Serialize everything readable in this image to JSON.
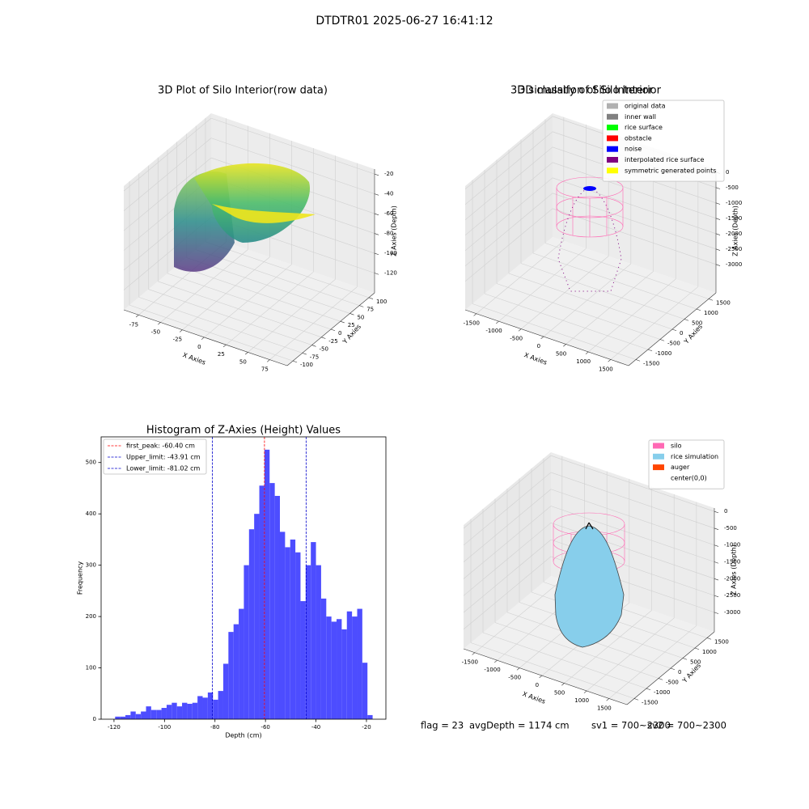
{
  "title": "DTDTR01 2025-06-27 16:41:12",
  "chart_data": [
    {
      "type": "scatter3d",
      "title": "3D Plot of Silo Interior(row data)",
      "xlabel": "X Axies",
      "ylabel": "Y Axies",
      "zlabel": "Z Axies (Depth)",
      "xlim": [
        -92,
        95
      ],
      "ylim": [
        -115,
        115
      ],
      "zlim": [
        -140,
        -15
      ],
      "xticks": [
        -75,
        -50,
        -25,
        0,
        25,
        50,
        75
      ],
      "yticks": [
        -100,
        -75,
        -50,
        -25,
        0,
        25,
        50,
        75,
        100
      ],
      "zticks": [
        -120,
        -100,
        -80,
        -60,
        -40,
        -20
      ],
      "grid": true
    },
    {
      "type": "scatter3d",
      "title": "3D classify of Silo Interior",
      "xlabel": "X Axies",
      "ylabel": "Y Axies",
      "zlabel": "Z Axies (Depth)",
      "xlim": [
        -1750,
        1900
      ],
      "ylim": [
        -1800,
        1800
      ],
      "zlim": [
        -3926,
        100
      ],
      "xticks": [
        -1500,
        -1000,
        -500,
        0,
        500,
        1000,
        1500
      ],
      "yticks": [
        -1500,
        -1000,
        -500,
        0,
        500,
        1000,
        1500
      ],
      "zticks": [
        -3000,
        -2500,
        -2000,
        -1500,
        -1000,
        -500,
        0
      ],
      "grid": true,
      "legend": {
        "loc": "upper right",
        "items": [
          {
            "name": "original data",
            "color": "#b0b0b0"
          },
          {
            "name": "inner wall",
            "color": "#808080"
          },
          {
            "name": "rice surface",
            "color": "#00ff00"
          },
          {
            "name": "obstacle",
            "color": "#ff0000"
          },
          {
            "name": "noise",
            "color": "#0000ff"
          },
          {
            "name": "interpolated rice surface",
            "color": "#800080"
          },
          {
            "name": "symmetric generated points",
            "color": "#ffff00"
          }
        ]
      }
    },
    {
      "type": "histogram",
      "title": "Histogram of Z-Axies (Height) Values",
      "xlabel": "Depth (cm)",
      "ylabel": "Frequency",
      "color": "#4d4dff",
      "bins": [
        -119.56,
        -117.52,
        -115.48,
        -113.44,
        -111.4,
        -109.36,
        -107.32,
        -105.28,
        -103.24,
        -101.2,
        -99.16,
        -97.12,
        -95.08,
        -93.04,
        -91.0,
        -88.96,
        -86.92,
        -84.88,
        -82.84,
        -80.8,
        -78.76,
        -76.72,
        -74.68,
        -72.64,
        -70.6,
        -68.56,
        -66.52,
        -64.48,
        -62.44,
        -60.4,
        -58.36,
        -56.32,
        -54.28,
        -52.24,
        -50.2,
        -48.16,
        -46.12,
        -44.08,
        -42.04,
        -40.0,
        -37.96,
        -35.92,
        -33.88,
        -31.84,
        -29.8,
        -27.76,
        -25.72,
        -23.68,
        -21.64,
        -19.6,
        -17.56
      ],
      "counts": [
        5,
        5,
        8,
        15,
        10,
        15,
        25,
        18,
        18,
        22,
        28,
        32,
        25,
        32,
        30,
        32,
        45,
        42,
        52,
        38,
        55,
        108,
        170,
        185,
        215,
        300,
        370,
        400,
        455,
        525,
        460,
        435,
        365,
        335,
        350,
        325,
        230,
        300,
        345,
        300,
        235,
        200,
        190,
        195,
        175,
        210,
        200,
        215,
        110,
        8
      ],
      "xlim": [
        -125.1,
        -12.3
      ],
      "ylim": [
        0,
        550
      ],
      "xticks": [
        -120,
        -100,
        -80,
        -60,
        -40,
        -20
      ],
      "yticks": [
        0,
        100,
        200,
        300,
        400,
        500
      ],
      "vlines": [
        {
          "label": "first_peak: -60.40 cm",
          "value": -60.4,
          "color": "#ff0000"
        },
        {
          "label": "Upper_limit: -43.91 cm",
          "value": -43.91,
          "color": "#0000cc"
        },
        {
          "label": "Lower_limit: -81.02 cm",
          "value": -81.02,
          "color": "#0000cc"
        }
      ],
      "legend": "upper left"
    },
    {
      "type": "surface3d",
      "title": "3D simulation of Silo Interior",
      "xlabel": "X Axies",
      "ylabel": "Y Axies",
      "zlabel": "Z Axies (Depth)",
      "xlim": [
        -1750,
        1900
      ],
      "ylim": [
        -1800,
        1800
      ],
      "zlim": [
        -3580,
        100
      ],
      "xticks": [
        -1500,
        -1000,
        -500,
        0,
        500,
        1000,
        1500
      ],
      "yticks": [
        -1500,
        -1000,
        -500,
        0,
        500,
        1000,
        1500
      ],
      "zticks": [
        -3000,
        -2500,
        -2000,
        -1500,
        -1000,
        -500,
        0
      ],
      "grid": true,
      "legend": {
        "loc": "upper right",
        "items": [
          {
            "name": "silo",
            "color": "#ff69b4"
          },
          {
            "name": "rice simulation",
            "color": "#87ceeb"
          },
          {
            "name": "auger",
            "color": "#ff4500"
          },
          {
            "name": "center(0,0)",
            "color": "#ffffff"
          }
        ]
      }
    }
  ],
  "status": [
    "flag = 23",
    "avgDepth = 1174 cm",
    "sv1 = 700~2300",
    "sv2 = 700~2300"
  ]
}
